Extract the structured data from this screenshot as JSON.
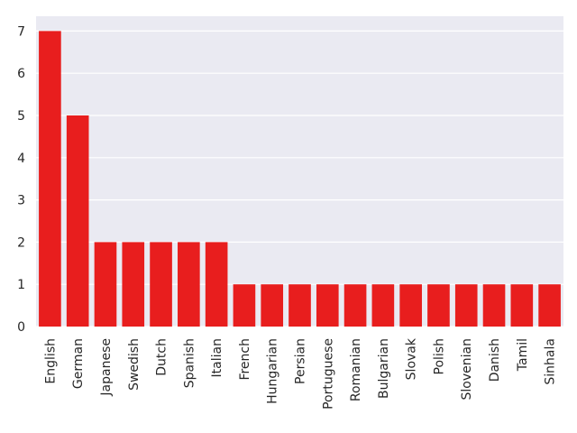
{
  "chart_data": {
    "type": "bar",
    "title": "",
    "xlabel": "",
    "ylabel": "",
    "categories": [
      "English",
      "German",
      "Japanese",
      "Swedish",
      "Dutch",
      "Spanish",
      "Italian",
      "French",
      "Hungarian",
      "Persian",
      "Portuguese",
      "Romanian",
      "Bulgarian",
      "Slovak",
      "Polish",
      "Slovenian",
      "Danish",
      "Tamil",
      "Sinhala"
    ],
    "values": [
      7,
      5,
      2,
      2,
      2,
      2,
      2,
      1,
      1,
      1,
      1,
      1,
      1,
      1,
      1,
      1,
      1,
      1,
      1
    ],
    "ylim": [
      0,
      7.35
    ],
    "yticks": [
      0,
      1,
      2,
      3,
      4,
      5,
      6,
      7
    ],
    "grid": true,
    "colors": {
      "bar": "#e81e1e",
      "background": "#eaeaf2",
      "grid": "#ffffff"
    }
  }
}
